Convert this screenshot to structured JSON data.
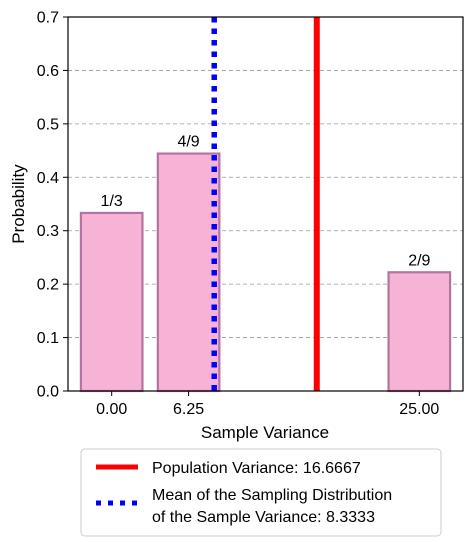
{
  "chart_data": {
    "type": "bar",
    "xlabel": "Sample Variance",
    "ylabel": "Probability",
    "ylim": [
      0,
      0.7
    ],
    "xlim": [
      -3.55,
      28.55
    ],
    "grid": "y",
    "bars": [
      {
        "x": 0.0,
        "value": 0.3333,
        "label": "1/3",
        "tick": "0.00"
      },
      {
        "x": 6.25,
        "value": 0.4444,
        "label": "4/9",
        "tick": "6.25"
      },
      {
        "x": 25.0,
        "value": 0.2222,
        "label": "2/9",
        "tick": "25.00"
      }
    ],
    "bar_width": 5,
    "y_ticks": [
      "0.0",
      "0.1",
      "0.2",
      "0.3",
      "0.4",
      "0.5",
      "0.6",
      "0.7"
    ],
    "bar_fill": "#f7b3d6",
    "bar_edge": "#b5739f",
    "lines": [
      {
        "name": "Population Variance: 16.6667",
        "x": 16.6667,
        "color": "#ff0000",
        "style": "solid"
      },
      {
        "name": "Mean of the Sampling Distribution of the Sample Variance: 8.3333",
        "label_lines": [
          "Mean of the Sampling Distribution",
          "of the Sample Variance: 8.3333"
        ],
        "x": 8.3333,
        "color": "#0000ff",
        "style": "dotted"
      }
    ],
    "legend_placement": "below"
  }
}
